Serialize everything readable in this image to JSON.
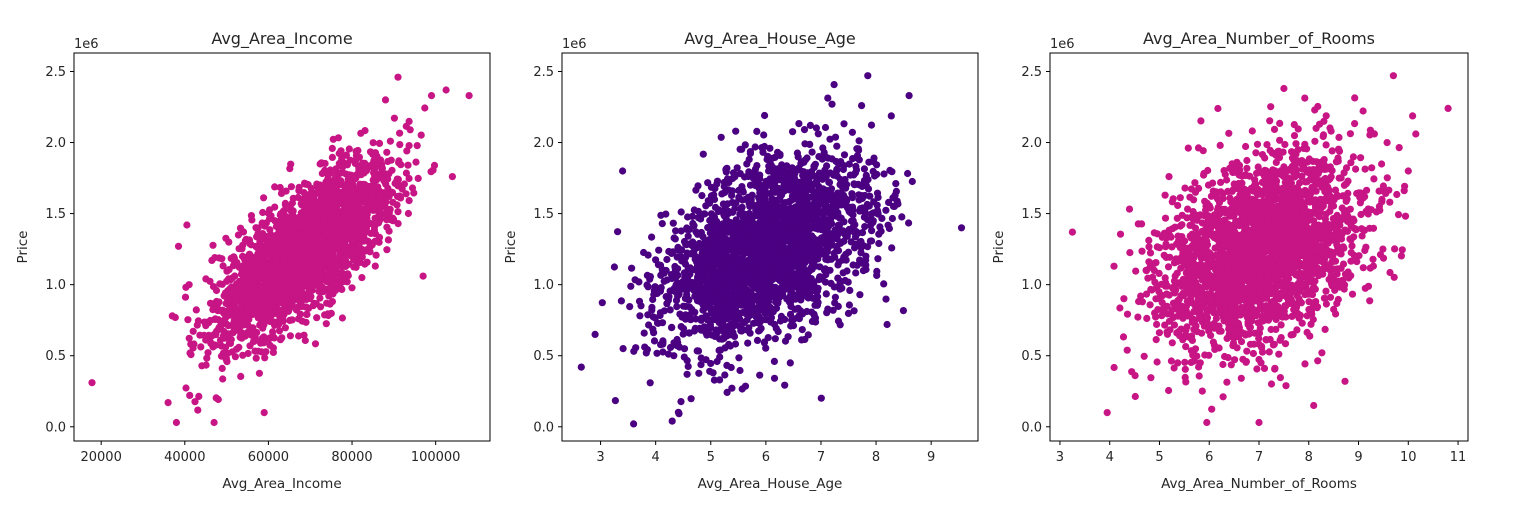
{
  "chart_data": [
    {
      "type": "scatter",
      "title": "Avg_Area_Income",
      "xlabel": "Avg_Area_Income",
      "ylabel": "Price",
      "offset_label": "1e6",
      "xlim": [
        13500,
        113000
      ],
      "ylim": [
        -0.1,
        2.63
      ],
      "xticks": [
        20000,
        40000,
        60000,
        80000,
        100000
      ],
      "yticks": [
        0.0,
        0.5,
        1.0,
        1.5,
        2.0,
        2.5
      ],
      "color": "#c71585",
      "grid": false,
      "trend": {
        "slope": 2.13e-05,
        "x_mean": 68500,
        "y_mean": 1.23
      },
      "bulk": {
        "n": 2600,
        "x_mean": 68500,
        "x_sd": 10500,
        "resid_sd": 0.21,
        "x_range": [
          36000,
          101000
        ]
      },
      "outliers": [
        [
          17800,
          0.31
        ],
        [
          108000,
          2.33
        ],
        [
          102500,
          2.37
        ],
        [
          99000,
          2.33
        ],
        [
          91000,
          2.46
        ],
        [
          104000,
          1.76
        ],
        [
          97000,
          1.06
        ],
        [
          47000,
          0.03
        ],
        [
          38000,
          0.03
        ],
        [
          36000,
          0.17
        ],
        [
          38500,
          1.27
        ],
        [
          40500,
          1.42
        ],
        [
          59000,
          0.1
        ],
        [
          88000,
          2.3
        ]
      ]
    },
    {
      "type": "scatter",
      "title": "Avg_Area_House_Age",
      "xlabel": "Avg_Area_House_Age",
      "ylabel": "Price",
      "offset_label": "1e6",
      "xlim": [
        2.3,
        9.85
      ],
      "ylim": [
        -0.1,
        2.63
      ],
      "xticks": [
        3,
        4,
        5,
        6,
        7,
        8,
        9
      ],
      "yticks": [
        0.0,
        0.5,
        1.0,
        1.5,
        2.0,
        2.5
      ],
      "color": "#4b0082",
      "grid": false,
      "trend": {
        "slope": 0.165,
        "x_mean": 5.98,
        "y_mean": 1.23
      },
      "bulk": {
        "n": 2600,
        "x_mean": 5.98,
        "x_sd": 0.95,
        "resid_sd": 0.3,
        "x_range": [
          3.0,
          9.1
        ]
      },
      "outliers": [
        [
          2.65,
          0.42
        ],
        [
          9.55,
          1.4
        ],
        [
          7.85,
          2.47
        ],
        [
          8.6,
          2.33
        ],
        [
          3.4,
          1.8
        ],
        [
          3.6,
          0.02
        ],
        [
          4.3,
          0.04
        ],
        [
          2.9,
          0.65
        ],
        [
          7.2,
          2.27
        ],
        [
          8.2,
          0.72
        ]
      ]
    },
    {
      "type": "scatter",
      "title": "Avg_Area_Number_of_Rooms",
      "xlabel": "Avg_Area_Number_of_Rooms",
      "ylabel": "Price",
      "offset_label": "1e6",
      "xlim": [
        2.8,
        11.2
      ],
      "ylim": [
        -0.1,
        2.63
      ],
      "xticks": [
        3,
        4,
        5,
        6,
        7,
        8,
        9,
        10,
        11
      ],
      "yticks": [
        0.0,
        0.5,
        1.0,
        1.5,
        2.0,
        2.5
      ],
      "color": "#c71585",
      "grid": false,
      "trend": {
        "slope": 0.12,
        "x_mean": 6.99,
        "y_mean": 1.23
      },
      "bulk": {
        "n": 2600,
        "x_mean": 6.99,
        "x_sd": 1.0,
        "resid_sd": 0.33,
        "x_range": [
          4.0,
          10.3
        ]
      },
      "outliers": [
        [
          3.25,
          1.37
        ],
        [
          10.8,
          2.24
        ],
        [
          9.7,
          2.47
        ],
        [
          10.15,
          2.06
        ],
        [
          3.95,
          0.1
        ],
        [
          7.0,
          0.03
        ],
        [
          5.95,
          0.03
        ],
        [
          8.1,
          0.15
        ],
        [
          7.5,
          2.38
        ],
        [
          10.0,
          1.8
        ]
      ]
    }
  ]
}
